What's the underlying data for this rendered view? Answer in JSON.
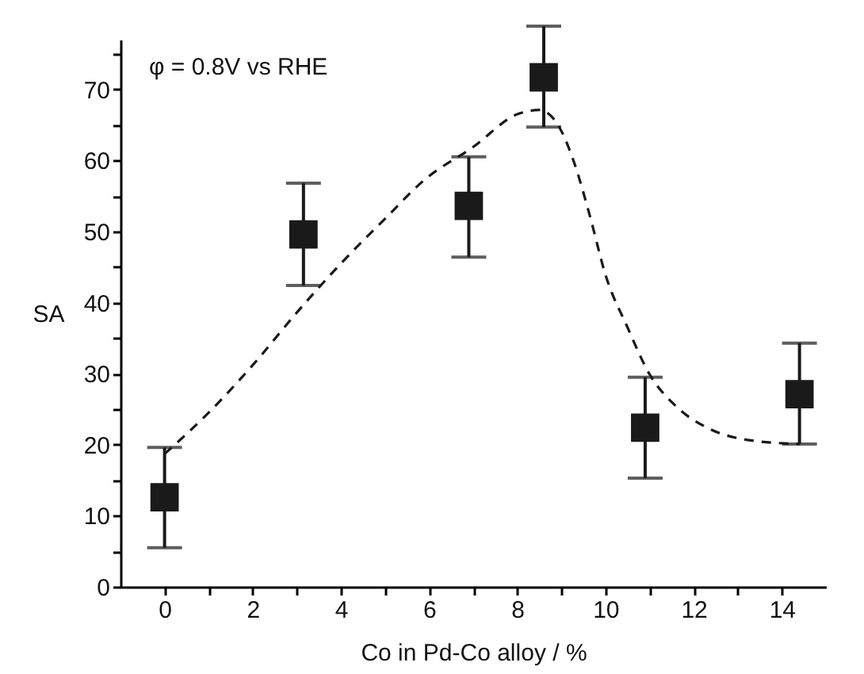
{
  "chart_data": {
    "type": "scatter",
    "xlabel": "Co in Pd-Co alloy / %",
    "ylabel": "SA",
    "annotations": [
      "φ = 0.8V vs RHE"
    ],
    "xlim": [
      -1,
      15
    ],
    "ylim": [
      0,
      77
    ],
    "xticks": [
      0,
      {
        "value": 1,
        "label": null
      },
      2,
      {
        "value": 3,
        "label": null
      },
      4,
      {
        "value": 5,
        "label": null
      },
      6,
      {
        "value": 7,
        "label": null
      },
      8,
      {
        "value": 9,
        "label": null
      },
      10,
      {
        "value": 11,
        "label": null
      },
      12,
      {
        "value": 13,
        "label": null
      },
      14
    ],
    "yticks": [
      0,
      {
        "value": 5,
        "label": null
      },
      10,
      {
        "value": 15,
        "label": null
      },
      20,
      {
        "value": 25,
        "label": null
      },
      30,
      {
        "value": 35,
        "label": null
      },
      40,
      {
        "value": 45,
        "label": null
      },
      50,
      {
        "value": 55,
        "label": null
      },
      60,
      {
        "value": 65,
        "label": null
      },
      70,
      {
        "value": 75,
        "label": null
      }
    ],
    "marker": "square",
    "series": [
      {
        "type": "scatter",
        "color": "#1a1a1a",
        "x": [
          0,
          3.15,
          6.9,
          8.6,
          10.9,
          14.4
        ],
        "values": [
          12.6,
          49.6,
          53.6,
          71.7,
          22.4,
          27.1
        ],
        "errors": [
          [
            5.5,
            19.6
          ],
          [
            42.4,
            56.8
          ],
          [
            46.4,
            60.5
          ],
          [
            64.7,
            78.9
          ],
          [
            15.3,
            29.5
          ],
          [
            20.1,
            34.3
          ]
        ]
      },
      {
        "type": "line",
        "marker": "none",
        "color": "#1a1a1a",
        "line_style": "dashed",
        "x": [
          0,
          1,
          2,
          3,
          4,
          5,
          5.9,
          7,
          8,
          8.5,
          8.95,
          9.3,
          9.65,
          10,
          10.5,
          11,
          11.6,
          12.3,
          13.3,
          14.4
        ],
        "values": [
          18.7,
          24.5,
          31.2,
          38.6,
          45.5,
          51.8,
          57.3,
          61.9,
          66.5,
          67.1,
          64.7,
          59.5,
          52.1,
          43.9,
          36.5,
          29.9,
          25.4,
          22.4,
          20.6,
          20.1
        ]
      }
    ]
  }
}
